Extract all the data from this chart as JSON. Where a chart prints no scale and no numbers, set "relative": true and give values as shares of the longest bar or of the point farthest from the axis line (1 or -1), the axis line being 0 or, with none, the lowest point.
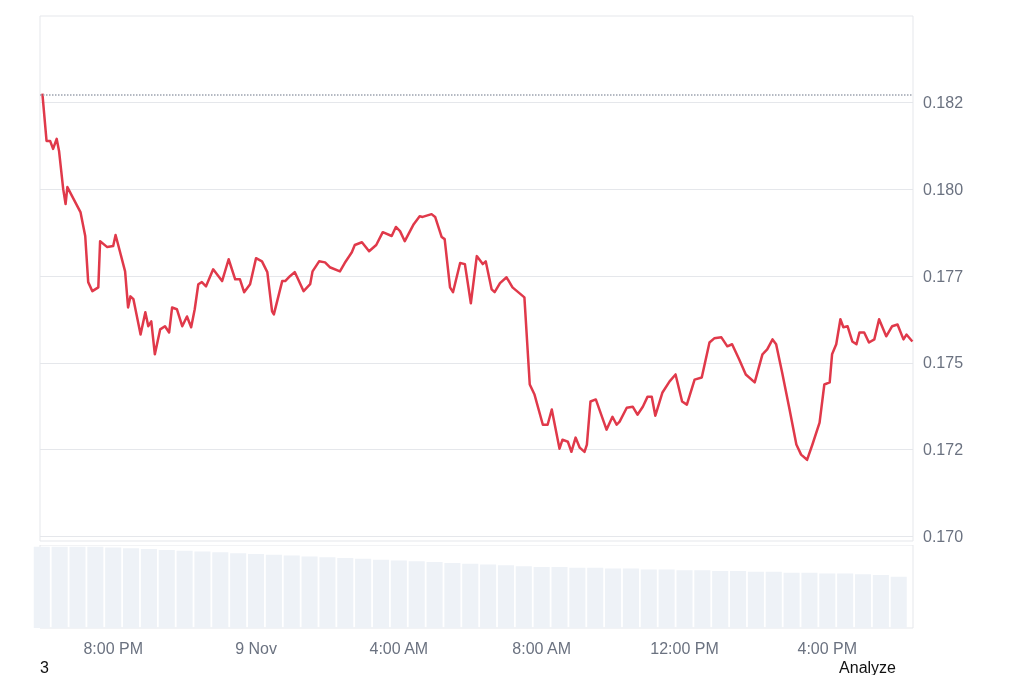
{
  "chart_data": [
    {
      "type": "line",
      "xlim": [
        "--11-08T17:57",
        "--11-09T18:24"
      ],
      "ylim": [
        0.16987,
        0.185
      ],
      "tick_labels": "y",
      "yticks": [
        {
          "value": 0.17,
          "label": "0.170"
        },
        {
          "value": 0.1725,
          "label": "0.172"
        },
        {
          "value": 0.175,
          "label": "0.175"
        },
        {
          "value": 0.1775,
          "label": "0.177"
        },
        {
          "value": 0.18,
          "label": "0.180"
        },
        {
          "value": 0.1825,
          "label": "0.182"
        }
      ],
      "grid": "y",
      "marker": "none",
      "ref_lines": [
        {
          "axis": "y",
          "value": 0.18273,
          "color": "#9ca3af",
          "line_style": "dotted"
        }
      ],
      "series": [
        {
          "color": "#e0394a",
          "x": [
            "--11-08T18:01",
            "--11-08T18:08",
            "--11-08T18:14",
            "--11-08T18:19",
            "--11-08T18:25",
            "--11-08T18:29",
            "--11-08T18:36",
            "--11-08T18:40",
            "--11-08T18:43",
            "--11-08T19:05",
            "--11-08T19:13",
            "--11-08T19:18",
            "--11-08T19:25",
            "--11-08T19:35",
            "--11-08T19:38",
            "--11-08T19:50",
            "--11-08T20:00",
            "--11-08T20:04",
            "--11-08T20:08",
            "--11-08T20:20",
            "--11-08T20:25",
            "--11-08T20:29",
            "--11-08T20:34",
            "--11-08T20:46",
            "--11-08T20:54",
            "--11-08T20:59",
            "--11-08T21:04",
            "--11-08T21:10",
            "--11-08T21:19",
            "--11-08T21:27",
            "--11-08T21:34",
            "--11-08T21:39",
            "--11-08T21:47",
            "--11-08T21:56",
            "--11-08T22:04",
            "--11-08T22:11",
            "--11-08T22:17",
            "--11-08T22:23",
            "--11-08T22:29",
            "--11-08T22:36",
            "--11-08T22:48",
            "--11-08T23:03",
            "--11-08T23:14",
            "--11-08T23:25",
            "--11-08T23:33",
            "--11-08T23:40",
            "--11-08T23:50",
            "--11-09T00:00",
            "--11-09T00:10",
            "--11-09T00:19",
            "--11-09T00:27",
            "--11-09T00:30",
            "--11-09T00:44",
            "--11-09T00:49",
            "--11-09T00:57",
            "--11-09T01:05",
            "--11-09T01:10",
            "--11-09T01:20",
            "--11-09T01:31",
            "--11-09T01:35",
            "--11-09T01:46",
            "--11-09T01:56",
            "--11-09T02:04",
            "--11-09T02:21",
            "--11-09T02:29",
            "--11-09T02:41",
            "--11-09T02:46",
            "--11-09T02:58",
            "--11-09T03:10",
            "--11-09T03:22",
            "--11-09T03:33",
            "--11-09T03:48",
            "--11-09T03:55",
            "--11-09T04:02",
            "--11-09T04:10",
            "--11-09T04:25",
            "--11-09T04:35",
            "--11-09T04:40",
            "--11-09T04:55",
            "--11-09T05:01",
            "--11-09T05:12",
            "--11-09T05:17",
            "--11-09T05:26",
            "--11-09T05:31",
            "--11-09T05:43",
            "--11-09T05:51",
            "--11-09T06:01",
            "--11-09T06:11",
            "--11-09T06:21",
            "--11-09T06:26",
            "--11-09T06:36",
            "--11-09T06:41",
            "--11-09T06:50",
            "--11-09T07:01",
            "--11-09T07:11",
            "--11-09T07:31",
            "--11-09T07:40",
            "--11-09T07:48",
            "--11-09T08:02",
            "--11-09T08:10",
            "--11-09T08:17",
            "--11-09T08:30",
            "--11-09T08:35",
            "--11-09T08:44",
            "--11-09T08:50",
            "--11-09T08:57",
            "--11-09T09:04",
            "--11-09T09:12",
            "--11-09T09:16",
            "--11-09T09:22",
            "--11-09T09:31",
            "--11-09T09:49",
            "--11-09T09:59",
            "--11-09T10:06",
            "--11-09T10:11",
            "--11-09T10:23",
            "--11-09T10:33",
            "--11-09T10:41",
            "--11-09T10:50",
            "--11-09T10:58",
            "--11-09T11:05",
            "--11-09T11:11",
            "--11-09T11:23",
            "--11-09T11:35",
            "--11-09T11:45",
            "--11-09T11:56",
            "--11-09T12:04",
            "--11-09T12:17",
            "--11-09T12:29",
            "--11-09T12:42",
            "--11-09T12:50",
            "--11-09T13:02",
            "--11-09T13:12",
            "--11-09T13:20",
            "--11-09T13:32",
            "--11-09T13:43",
            "--11-09T13:58",
            "--11-09T14:11",
            "--11-09T14:19",
            "--11-09T14:28",
            "--11-09T14:34",
            "--11-09T14:44",
            "--11-09T14:56",
            "--11-09T15:08",
            "--11-09T15:16",
            "--11-09T15:26",
            "--11-09T15:35",
            "--11-09T15:47",
            "--11-09T15:55",
            "--11-09T16:04",
            "--11-09T16:08",
            "--11-09T16:15",
            "--11-09T16:22",
            "--11-09T16:27",
            "--11-09T16:34",
            "--11-09T16:42",
            "--11-09T16:49",
            "--11-09T16:54",
            "--11-09T17:02",
            "--11-09T17:10",
            "--11-09T17:19",
            "--11-09T17:27",
            "--11-09T17:39",
            "--11-09T17:49",
            "--11-09T17:58",
            "--11-09T18:08",
            "--11-09T18:13",
            "--11-09T18:23"
          ],
          "values": [
            0.18276,
            0.1814,
            0.1814,
            0.18117,
            0.18146,
            0.18111,
            0.18001,
            0.17958,
            0.18007,
            0.17935,
            0.17866,
            0.17733,
            0.17707,
            0.17718,
            0.17851,
            0.17834,
            0.17837,
            0.17869,
            0.17843,
            0.17764,
            0.1766,
            0.17692,
            0.17684,
            0.17582,
            0.17646,
            0.17606,
            0.1762,
            0.17525,
            0.17597,
            0.17606,
            0.17588,
            0.1766,
            0.17655,
            0.17606,
            0.17634,
            0.17603,
            0.17655,
            0.17727,
            0.17733,
            0.17721,
            0.1777,
            0.17736,
            0.17799,
            0.17741,
            0.17741,
            0.17704,
            0.17727,
            0.17802,
            0.17793,
            0.17762,
            0.17649,
            0.1764,
            0.17736,
            0.17736,
            0.1775,
            0.17762,
            0.17744,
            0.17707,
            0.17727,
            0.17764,
            0.17793,
            0.1779,
            0.17776,
            0.17764,
            0.17788,
            0.17819,
            0.1784,
            0.17848,
            0.17822,
            0.1784,
            0.17877,
            0.17866,
            0.17892,
            0.1788,
            0.17851,
            0.179,
            0.17923,
            0.17921,
            0.17929,
            0.17921,
            0.17863,
            0.17857,
            0.17718,
            0.17704,
            0.17788,
            0.17785,
            0.17672,
            0.17808,
            0.17785,
            0.17793,
            0.17712,
            0.17704,
            0.1773,
            0.17747,
            0.17718,
            0.17689,
            0.17438,
            0.17409,
            0.17322,
            0.17322,
            0.17366,
            0.17253,
            0.17279,
            0.17273,
            0.17244,
            0.17285,
            0.17256,
            0.17244,
            0.17265,
            0.17389,
            0.17395,
            0.17308,
            0.17345,
            0.17322,
            0.17331,
            0.17371,
            0.17374,
            0.17351,
            0.17374,
            0.17403,
            0.17403,
            0.17348,
            0.17415,
            0.17447,
            0.17467,
            0.17389,
            0.1738,
            0.17452,
            0.17458,
            0.17559,
            0.17571,
            0.17574,
            0.17548,
            0.17554,
            0.1751,
            0.17467,
            0.17444,
            0.17525,
            0.17539,
            0.17568,
            0.17554,
            0.17473,
            0.17371,
            0.17265,
            0.17236,
            0.17221,
            0.17265,
            0.17328,
            0.17438,
            0.17444,
            0.17525,
            0.17554,
            0.17626,
            0.17603,
            0.17606,
            0.17562,
            0.17554,
            0.17588,
            0.17588,
            0.17559,
            0.17568,
            0.17626,
            0.17577,
            0.17606,
            0.17611,
            0.17568,
            0.17582,
            0.17562
          ]
        }
      ]
    },
    {
      "type": "bar",
      "relative": true,
      "tick_labels": "x",
      "xlim": [
        "--11-08T17:57",
        "--11-09T18:24"
      ],
      "xticks": [
        {
          "value": "--11-08T20:00",
          "label": "8:00 PM"
        },
        {
          "value": "--11-09T00:00",
          "label": "9 Nov"
        },
        {
          "value": "--11-09T04:00",
          "label": "4:00 AM"
        },
        {
          "value": "--11-09T08:00",
          "label": "8:00 AM"
        },
        {
          "value": "--11-09T12:00",
          "label": "12:00 PM"
        },
        {
          "value": "--11-09T16:00",
          "label": "4:00 PM"
        }
      ],
      "annotations": [
        "3",
        "Analyze"
      ],
      "color": "#eef2f7",
      "x": [
        "--11-08T18:00",
        "--11-08T18:30",
        "--11-08T19:00",
        "--11-08T19:30",
        "--11-08T20:00",
        "--11-08T20:30",
        "--11-08T21:00",
        "--11-08T21:30",
        "--11-08T22:00",
        "--11-08T22:30",
        "--11-08T23:00",
        "--11-08T23:30",
        "--11-09T00:00",
        "--11-09T00:30",
        "--11-09T01:00",
        "--11-09T01:30",
        "--11-09T02:00",
        "--11-09T02:30",
        "--11-09T03:00",
        "--11-09T03:30",
        "--11-09T04:00",
        "--11-09T04:30",
        "--11-09T05:00",
        "--11-09T05:30",
        "--11-09T06:00",
        "--11-09T06:30",
        "--11-09T07:00",
        "--11-09T07:30",
        "--11-09T08:00",
        "--11-09T08:30",
        "--11-09T09:00",
        "--11-09T09:30",
        "--11-09T10:00",
        "--11-09T10:30",
        "--11-09T11:00",
        "--11-09T11:30",
        "--11-09T12:00",
        "--11-09T12:30",
        "--11-09T13:00",
        "--11-09T13:30",
        "--11-09T14:00",
        "--11-09T14:30",
        "--11-09T15:00",
        "--11-09T15:30",
        "--11-09T16:00",
        "--11-09T16:30",
        "--11-09T17:00",
        "--11-09T17:30",
        "--11-09T18:00"
      ],
      "values": [
        1,
        1,
        1,
        1,
        0.99,
        0.98,
        0.97,
        0.96,
        0.95,
        0.94,
        0.93,
        0.92,
        0.91,
        0.9,
        0.89,
        0.88,
        0.87,
        0.86,
        0.85,
        0.84,
        0.83,
        0.82,
        0.81,
        0.8,
        0.79,
        0.78,
        0.77,
        0.76,
        0.75,
        0.75,
        0.74,
        0.74,
        0.73,
        0.73,
        0.72,
        0.72,
        0.71,
        0.71,
        0.7,
        0.7,
        0.69,
        0.69,
        0.68,
        0.68,
        0.67,
        0.67,
        0.66,
        0.65,
        0.63
      ]
    }
  ]
}
